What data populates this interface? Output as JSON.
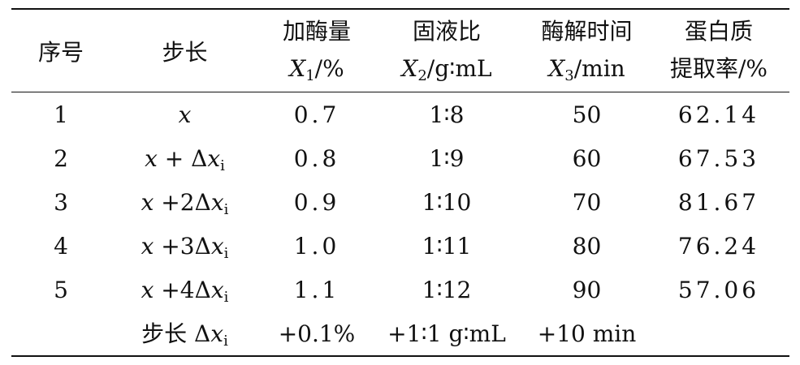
{
  "table": {
    "headers": {
      "col0": "序号",
      "col1": "步长",
      "col2": {
        "line1": "加酶量",
        "var": "X",
        "sub": "1",
        "unit": "/%"
      },
      "col3": {
        "line1": "固液比",
        "var": "X",
        "sub": "2",
        "unit": "/g∶mL"
      },
      "col4": {
        "line1": "酶解时间",
        "var": "X",
        "sub": "3",
        "unit": "/min"
      },
      "col5": {
        "line1": "蛋白质",
        "line2": "提取率/%"
      }
    },
    "rows": [
      {
        "no": "1",
        "step_var": "x",
        "step_rest": "",
        "step_sub": "",
        "enzyme": "0.7",
        "ratio": "1∶8",
        "time": "50",
        "rate": "62.14"
      },
      {
        "no": "2",
        "step_var": "x",
        "step_rest": " + Δ",
        "step_sub": "i",
        "enzyme": "0.8",
        "ratio": "1∶9",
        "time": "60",
        "rate": "67.53"
      },
      {
        "no": "3",
        "step_var": "x",
        "step_rest": " +2Δ",
        "step_sub": "i",
        "enzyme": "0.9",
        "ratio": "1∶10",
        "time": "70",
        "rate": "81.67"
      },
      {
        "no": "4",
        "step_var": "x",
        "step_rest": " +3Δ",
        "step_sub": "i",
        "enzyme": "1.0",
        "ratio": "1∶11",
        "time": "80",
        "rate": "76.24"
      },
      {
        "no": "5",
        "step_var": "x",
        "step_rest": " +4Δ",
        "step_sub": "i",
        "enzyme": "1.1",
        "ratio": "1∶12",
        "time": "90",
        "rate": "57.06"
      }
    ],
    "step_row": {
      "label": "步长 Δ",
      "var": "x",
      "sub": "i",
      "enzyme": "+0.1%",
      "ratio": "+1∶1 g∶mL",
      "time": "+10 min"
    }
  }
}
